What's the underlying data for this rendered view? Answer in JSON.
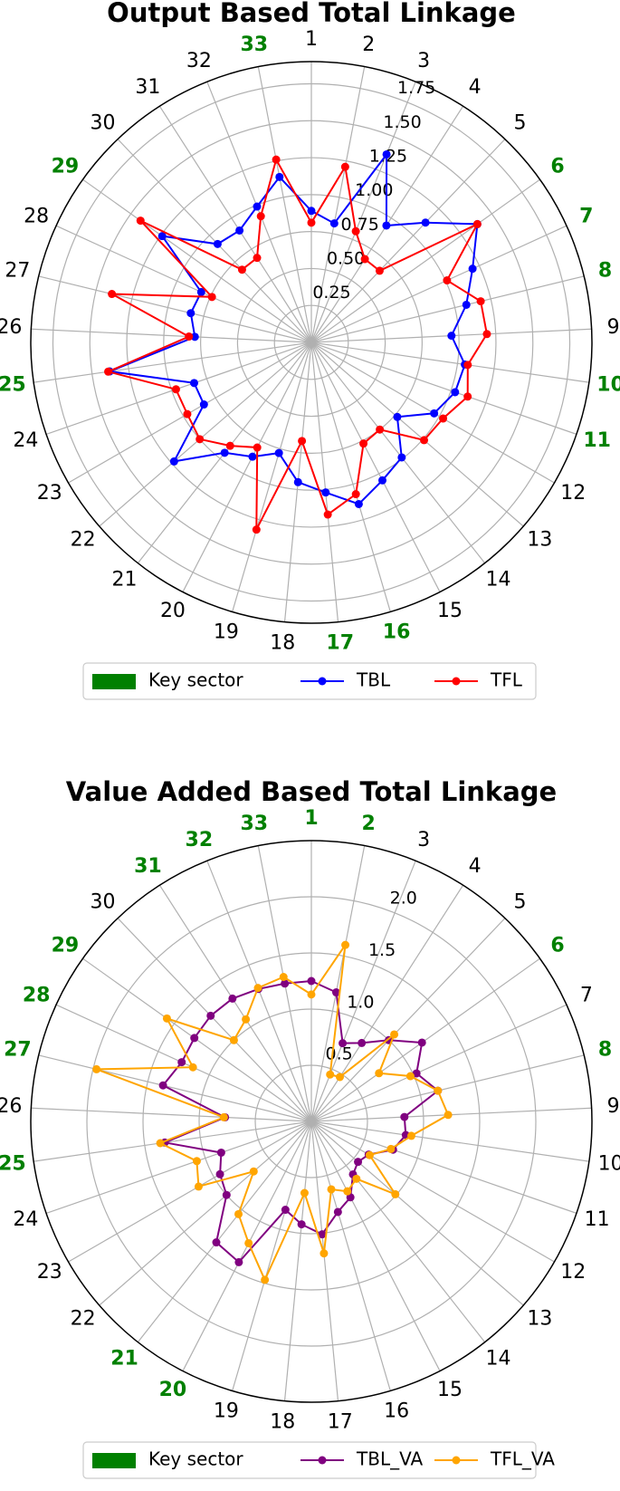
{
  "chart_data": [
    {
      "type": "radar",
      "title": "Output Based Total Linkage",
      "categories": [
        "1",
        "2",
        "3",
        "4",
        "5",
        "6",
        "7",
        "8",
        "9",
        "10",
        "11",
        "12",
        "13",
        "14",
        "15",
        "16",
        "17",
        "18",
        "19",
        "20",
        "21",
        "22",
        "23",
        "24",
        "25",
        "26",
        "27",
        "28",
        "29",
        "30",
        "31",
        "32",
        "33"
      ],
      "key_sector": [
        false,
        false,
        false,
        false,
        false,
        true,
        true,
        true,
        false,
        true,
        true,
        false,
        false,
        false,
        false,
        true,
        true,
        false,
        false,
        false,
        false,
        false,
        false,
        false,
        true,
        false,
        false,
        false,
        true,
        false,
        false,
        false,
        true
      ],
      "key_label": "Key sector",
      "key_color": "#008000",
      "series": [
        {
          "name": "TBL",
          "color": "#0000ff",
          "values": [
            0.89,
            0.82,
            1.37,
            0.94,
            1.12,
            1.38,
            1.2,
            1.08,
            0.95,
            1.05,
            1.03,
            0.96,
            0.77,
            0.99,
            1.05,
            1.14,
            1.02,
            0.95,
            0.78,
            0.87,
            0.95,
            1.23,
            0.84,
            0.84,
            1.38,
            0.79,
            0.84,
            0.82,
            1.24,
            0.92,
            0.9,
            0.99,
            1.14
          ]
        },
        {
          "name": "TFL",
          "color": "#ff0000",
          "values": [
            0.81,
            1.21,
            0.81,
            0.67,
            0.67,
            1.38,
            1.01,
            1.18,
            1.19,
            1.07,
            1.12,
            1.03,
            1.01,
            0.75,
            0.77,
            1.07,
            1.17,
            0.67,
            1.32,
            0.8,
            0.89,
            1.0,
            0.97,
            0.97,
            1.39,
            0.83,
            1.39,
            0.74,
            1.42,
            0.68,
            0.68,
            0.92,
            1.26
          ]
        }
      ],
      "ylim": [
        0,
        1.9
      ],
      "yticks": [
        0.25,
        {
          "value": 0.5,
          "label": "0.50"
        },
        0.75,
        {
          "value": 1,
          "label": "1.00"
        },
        1.25,
        {
          "value": 1.5,
          "label": "1.50"
        },
        1.75
      ],
      "grid": true
    },
    {
      "type": "radar",
      "title": "Value Added Based Total Linkage",
      "categories": [
        "1",
        "2",
        "3",
        "4",
        "5",
        "6",
        "7",
        "8",
        "9",
        "10",
        "11",
        "12",
        "13",
        "14",
        "15",
        "16",
        "17",
        "18",
        "19",
        "20",
        "21",
        "22",
        "23",
        "24",
        "25",
        "26",
        "27",
        "28",
        "29",
        "30",
        "31",
        "32",
        "33"
      ],
      "key_sector": [
        true,
        true,
        false,
        false,
        false,
        true,
        false,
        true,
        false,
        false,
        false,
        false,
        false,
        false,
        false,
        false,
        false,
        false,
        false,
        true,
        true,
        false,
        false,
        false,
        true,
        false,
        true,
        true,
        true,
        false,
        true,
        true,
        true
      ],
      "key_label": "Key sector",
      "key_color": "#008000",
      "series": [
        {
          "name": "TBL_VA",
          "color": "#800080",
          "values": [
            1.25,
            1.17,
            0.75,
            0.83,
            1.0,
            1.21,
            1.03,
            1.16,
            0.83,
            0.85,
            0.77,
            0.59,
            0.55,
            0.6,
            0.76,
            0.84,
            1.01,
            0.92,
            0.82,
            1.41,
            1.37,
            1.0,
            0.94,
            0.85,
            1.32,
            0.77,
            1.36,
            1.27,
            1.28,
            1.3,
            1.3,
            1.27,
            1.25
          ]
        },
        {
          "name": "TFL_VA",
          "color": "#ffa500",
          "values": [
            1.13,
            1.6,
            0.45,
            0.47,
            1.07,
            0.74,
            0.97,
            1.16,
            1.22,
            0.9,
            0.75,
            0.6,
            0.99,
            0.65,
            0.7,
            0.63,
            1.18,
            0.64,
            1.47,
            1.22,
            1.05,
            0.68,
            1.16,
            1.08,
            1.36,
            0.78,
            1.97,
            1.16,
            1.58,
            1.0,
            1.08,
            1.28,
            1.31
          ]
        }
      ],
      "ylim": [
        0,
        2.5
      ],
      "yticks": [
        0.5,
        {
          "value": 1,
          "label": "1.0"
        },
        1.5,
        {
          "value": 2,
          "label": "2.0"
        }
      ],
      "grid": true
    }
  ]
}
